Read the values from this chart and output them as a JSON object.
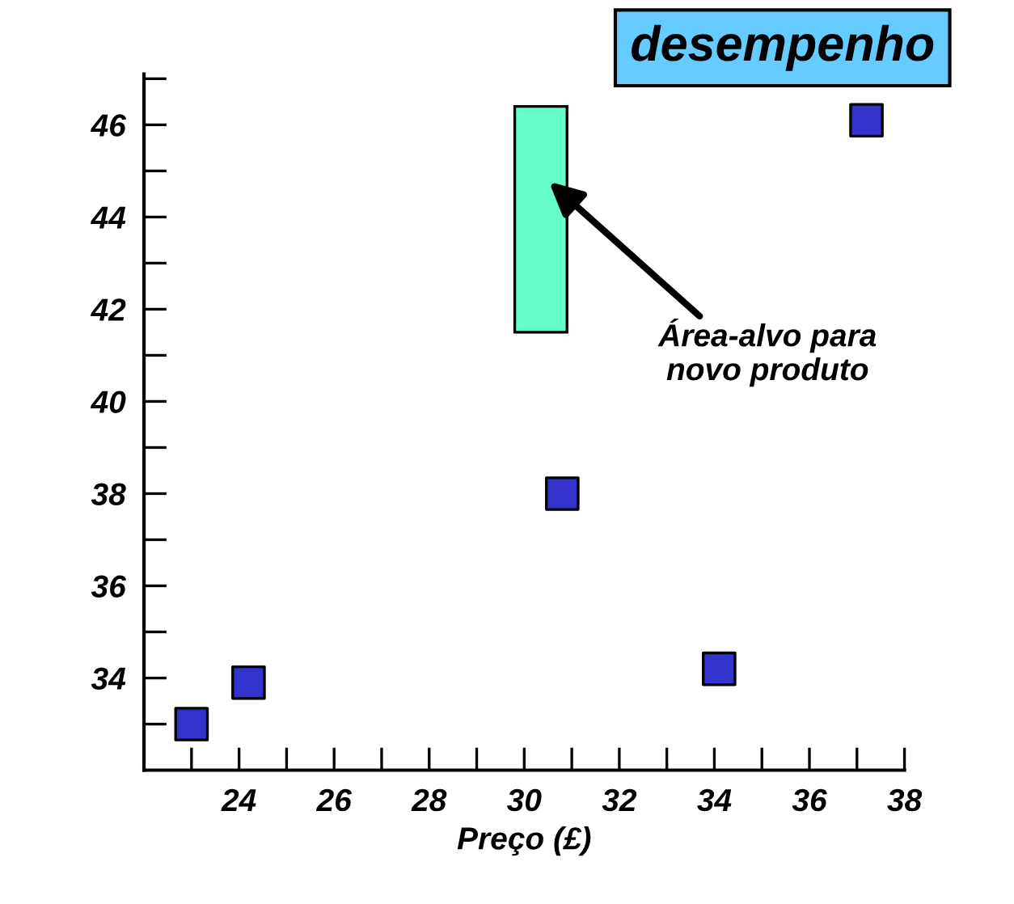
{
  "chart_data": {
    "type": "scatter",
    "title": "desempenho",
    "xlabel": "Preço (£)",
    "xlim": [
      22,
      38
    ],
    "ylim": [
      32,
      47.1
    ],
    "xticks": [
      {
        "value": 23,
        "label": null
      },
      24,
      {
        "value": 25,
        "label": null
      },
      26,
      {
        "value": 27,
        "label": null
      },
      28,
      {
        "value": 29,
        "label": null
      },
      30,
      {
        "value": 31,
        "label": null
      },
      32,
      {
        "value": 33,
        "label": null
      },
      34,
      {
        "value": 35,
        "label": null
      },
      36,
      {
        "value": 37,
        "label": null
      },
      38
    ],
    "yticks": [
      {
        "value": 33,
        "label": null
      },
      34,
      {
        "value": 35,
        "label": null
      },
      36,
      {
        "value": 37,
        "label": null
      },
      38,
      {
        "value": 39,
        "label": null
      },
      40,
      {
        "value": 41,
        "label": null
      },
      42,
      {
        "value": 43,
        "label": null
      },
      44,
      {
        "value": 45,
        "label": null
      },
      46,
      {
        "value": 47,
        "label": null
      }
    ],
    "series": [
      {
        "color": "#3333cc",
        "x": [
          23.0,
          24.2,
          30.8,
          34.1,
          37.2
        ],
        "values": [
          33.0,
          33.9,
          38.0,
          34.2,
          46.1
        ]
      },
      {
        "type": "bar",
        "color": "#66ffcc",
        "x": [
          30.35
        ],
        "base": [
          41.5
        ],
        "values": [
          4.9
        ]
      }
    ],
    "annotations": [
      "Área-alvo para\nnovo produto"
    ],
    "marker": "square",
    "grid": false,
    "legend": false
  }
}
